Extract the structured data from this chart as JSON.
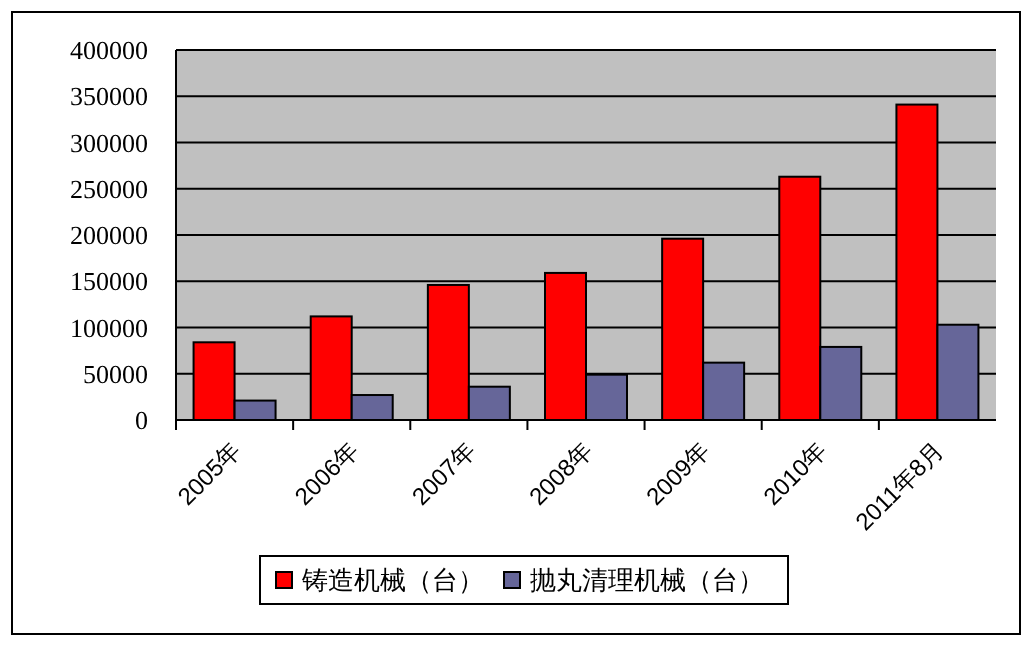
{
  "chart_data": {
    "type": "bar",
    "categories": [
      "2005年",
      "2006年",
      "2007年",
      "2008年",
      "2009年",
      "2010年",
      "2011年8月"
    ],
    "series": [
      {
        "name": "铸造机械（台）",
        "color": "#ff0000",
        "values": [
          84000,
          112000,
          146000,
          159000,
          196000,
          263000,
          341000
        ]
      },
      {
        "name": "抛丸清理机械（台）",
        "color": "#666699",
        "values": [
          21000,
          27000,
          36000,
          49000,
          62000,
          79000,
          103000
        ]
      }
    ],
    "ylim": [
      0,
      400000
    ],
    "yticks": [
      0,
      50000,
      100000,
      150000,
      200000,
      250000,
      300000,
      350000,
      400000
    ],
    "grid": "y",
    "legend": "bottom"
  }
}
